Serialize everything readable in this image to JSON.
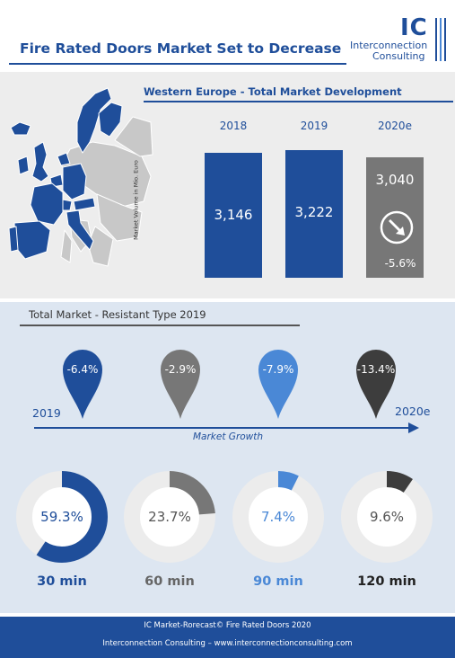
{
  "header": {
    "title": "Fire Rated Doors Market Set to Decrease",
    "logo_initials": "IC",
    "logo_line1": "Interconnection",
    "logo_line2": "Consulting"
  },
  "colors": {
    "brand_blue": "#1f4e9a",
    "gray": "#777777",
    "light_blue": "#4a88d6",
    "dark": "#3d3d3d",
    "panel_gray": "#ededed",
    "panel_blue": "#dde6f1"
  },
  "section1": {
    "title": "Western Europe - Total Market Development",
    "ylabel": "Market Volume in Mio. Euro",
    "change_label": "-5.6%",
    "change_icon": "down-right-arrow-icon"
  },
  "section2": {
    "title": "Total Market - Resistant Type 2019",
    "timeline_start": "2019",
    "timeline_end": "2020e",
    "timeline_label": "Market Growth"
  },
  "chart_data": [
    {
      "type": "bar",
      "title": "Western Europe - Total Market Development",
      "ylabel": "Market Volume in Mio. Euro",
      "categories": [
        "2018",
        "2019",
        "2020e"
      ],
      "values": [
        3146,
        3222,
        3040
      ],
      "value_labels": [
        "3,146",
        "3,222",
        "3,040"
      ],
      "colors": [
        "#1f4e9a",
        "#1f4e9a",
        "#777777"
      ],
      "change_2020e": "-5.6%"
    },
    {
      "type": "pie",
      "title": "Total Market - Resistant Type 2019",
      "categories": [
        "30 min",
        "60 min",
        "90 min",
        "120 min"
      ],
      "values": [
        59.3,
        23.7,
        7.4,
        9.6
      ],
      "value_labels": [
        "59.3%",
        "23.7%",
        "7.4%",
        "9.6%"
      ],
      "colors": [
        "#1f4e9a",
        "#777777",
        "#4a88d6",
        "#3d3d3d"
      ],
      "growth_labels": [
        "-6.4%",
        "-2.9%",
        "-7.9%",
        "-13.4%"
      ],
      "growth_values": [
        -6.4,
        -2.9,
        -7.9,
        -13.4
      ]
    }
  ],
  "footer": {
    "line1": "IC Market-Rorecast© Fire Rated Doors 2020",
    "line2": "Interconnection Consulting  –  www.interconnectionconsulting.com"
  }
}
